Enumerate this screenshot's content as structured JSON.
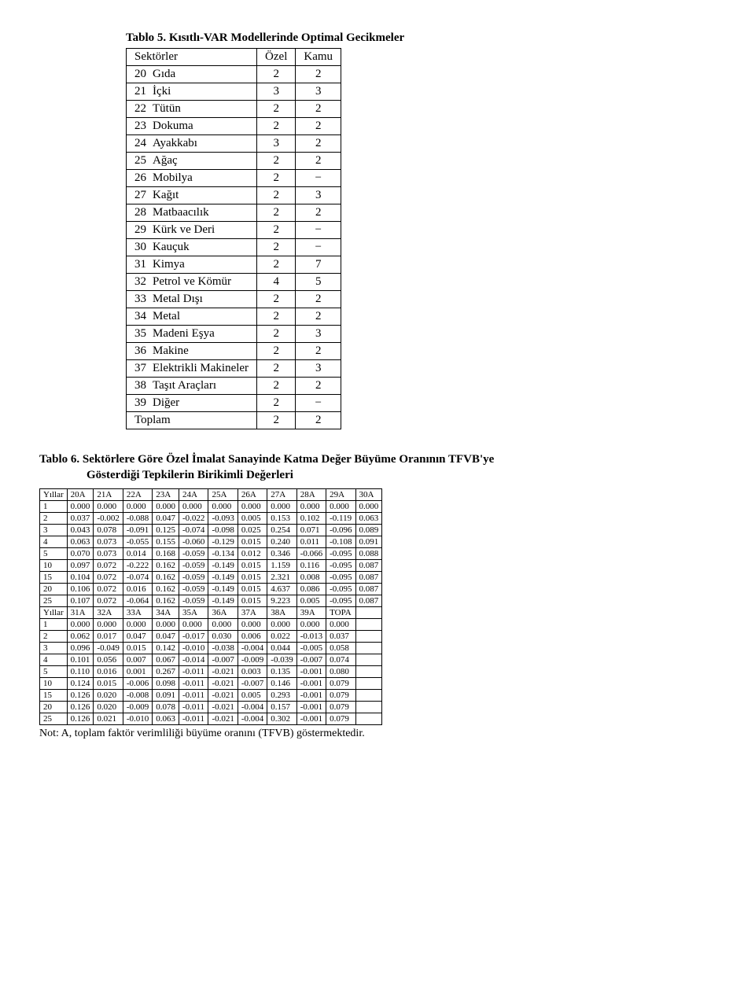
{
  "table5": {
    "title": "Tablo 5. Kısıtlı-VAR Modellerinde Optimal Gecikmeler",
    "headers": [
      "Sektörler",
      "Özel",
      "Kamu"
    ],
    "rows": [
      [
        "20",
        "Gıda",
        "2",
        "2"
      ],
      [
        "21",
        "İçki",
        "3",
        "3"
      ],
      [
        "22",
        "Tütün",
        "2",
        "2"
      ],
      [
        "23",
        "Dokuma",
        "2",
        "2"
      ],
      [
        "24",
        "Ayakkabı",
        "3",
        "2"
      ],
      [
        "25",
        "Ağaç",
        "2",
        "2"
      ],
      [
        "26",
        "Mobilya",
        "2",
        "−"
      ],
      [
        "27",
        "Kağıt",
        "2",
        "3"
      ],
      [
        "28",
        "Matbaacılık",
        "2",
        "2"
      ],
      [
        "29",
        "Kürk ve Deri",
        "2",
        "−"
      ],
      [
        "30",
        "Kauçuk",
        "2",
        "−"
      ],
      [
        "31",
        "Kimya",
        "2",
        "7"
      ],
      [
        "32",
        "Petrol ve Kömür",
        "4",
        "5"
      ],
      [
        "33",
        "Metal Dışı",
        "2",
        "2"
      ],
      [
        "34",
        "Metal",
        "2",
        "2"
      ],
      [
        "35",
        "Madeni Eşya",
        "2",
        "3"
      ],
      [
        "36",
        "Makine",
        "2",
        "2"
      ],
      [
        "37",
        "Elektrikli Makineler",
        "2",
        "3"
      ],
      [
        "38",
        "Taşıt Araçları",
        "2",
        "2"
      ],
      [
        "39",
        "Diğer",
        "2",
        "−"
      ],
      [
        "Toplam",
        "",
        "2",
        "2"
      ]
    ]
  },
  "table6": {
    "title_l1": "Tablo 6. Sektörlere Göre Özel İmalat Sanayinde Katma Değer Büyüme Oranının TFVB'ye",
    "title_l2": "Gösterdiği Tepkilerin Birikimli Değerleri",
    "headers1": [
      "Yıllar",
      "20A",
      "21A",
      "22A",
      "23A",
      "24A",
      "25A",
      "26A",
      "27A",
      "28A",
      "29A",
      "30A"
    ],
    "rows1": [
      [
        "1",
        "0.000",
        "0.000",
        "0.000",
        "0.000",
        "0.000",
        "0.000",
        "0.000",
        "0.000",
        "0.000",
        "0.000",
        "0.000"
      ],
      [
        "2",
        "0.037",
        "-0.002",
        "-0.088",
        "0.047",
        "-0.022",
        "-0.093",
        "0.005",
        "0.153",
        "0.102",
        "-0.119",
        "0.063"
      ],
      [
        "3",
        "0.043",
        "0.078",
        "-0.091",
        "0.125",
        "-0.074",
        "-0.098",
        "0.025",
        "0.254",
        "0.071",
        "-0.096",
        "0.089"
      ],
      [
        "4",
        "0.063",
        "0.073",
        "-0.055",
        "0.155",
        "-0.060",
        "-0.129",
        "0.015",
        "0.240",
        "0.011",
        "-0.108",
        "0.091"
      ],
      [
        "5",
        "0.070",
        "0.073",
        "0.014",
        "0.168",
        "-0.059",
        "-0.134",
        "0.012",
        "0.346",
        "-0.066",
        "-0.095",
        "0.088"
      ],
      [
        "10",
        "0.097",
        "0.072",
        "-0.222",
        "0.162",
        "-0.059",
        "-0.149",
        "0.015",
        "1.159",
        "0.116",
        "-0.095",
        "0.087"
      ],
      [
        "15",
        "0.104",
        "0.072",
        "-0.074",
        "0.162",
        "-0.059",
        "-0.149",
        "0.015",
        "2.321",
        "0.008",
        "-0.095",
        "0.087"
      ],
      [
        "20",
        "0.106",
        "0.072",
        "0.016",
        "0.162",
        "-0.059",
        "-0.149",
        "0.015",
        "4.637",
        "0.086",
        "-0.095",
        "0.087"
      ],
      [
        "25",
        "0.107",
        "0.072",
        "-0.064",
        "0.162",
        "-0.059",
        "-0.149",
        "0.015",
        "9.223",
        "0.005",
        "-0.095",
        "0.087"
      ]
    ],
    "headers2": [
      "Yıllar",
      "31A",
      "32A",
      "33A",
      "34A",
      "35A",
      "36A",
      "37A",
      "38A",
      "39A",
      "TOPA",
      ""
    ],
    "rows2": [
      [
        "1",
        "0.000",
        "0.000",
        "0.000",
        "0.000",
        "0.000",
        "0.000",
        "0.000",
        "0.000",
        "0.000",
        "0.000",
        ""
      ],
      [
        "2",
        "0.062",
        "0.017",
        "0.047",
        "0.047",
        "-0.017",
        "0.030",
        "0.006",
        "0.022",
        "-0.013",
        "0.037",
        ""
      ],
      [
        "3",
        "0.096",
        "-0.049",
        "0.015",
        "0.142",
        "-0.010",
        "-0.038",
        "-0.004",
        "0.044",
        "-0.005",
        "0.058",
        ""
      ],
      [
        "4",
        "0.101",
        "0.056",
        "0.007",
        "0.067",
        "-0.014",
        "-0.007",
        "-0.009",
        "-0.039",
        "-0.007",
        "0.074",
        ""
      ],
      [
        "5",
        "0.110",
        "0.016",
        "0.001",
        "0.267",
        "-0.011",
        "-0.021",
        "0.003",
        "0.135",
        "-0.001",
        "0.080",
        ""
      ],
      [
        "10",
        "0.124",
        "0.015",
        "-0.006",
        "0.098",
        "-0.011",
        "-0.021",
        "-0.007",
        "0.146",
        "-0.001",
        "0.079",
        ""
      ],
      [
        "15",
        "0.126",
        "0.020",
        "-0.008",
        "0.091",
        "-0.011",
        "-0.021",
        "0.005",
        "0.293",
        "-0.001",
        "0.079",
        ""
      ],
      [
        "20",
        "0.126",
        "0.020",
        "-0.009",
        "0.078",
        "-0.011",
        "-0.021",
        "-0.004",
        "0.157",
        "-0.001",
        "0.079",
        ""
      ],
      [
        "25",
        "0.126",
        "0.021",
        "-0.010",
        "0.063",
        "-0.011",
        "-0.021",
        "-0.004",
        "0.302",
        "-0.001",
        "0.079",
        ""
      ]
    ],
    "note": "Not: A, toplam faktör verimliliği  büyüme oranını (TFVB) göstermektedir."
  }
}
